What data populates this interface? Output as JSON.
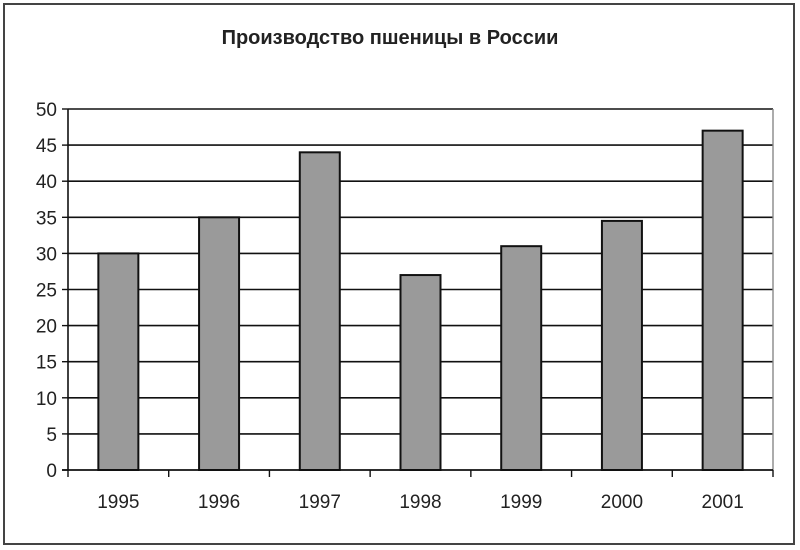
{
  "chart_data": {
    "type": "bar",
    "title": "Производство пшеницы в России",
    "xlabel": "",
    "ylabel": "",
    "categories": [
      "1995",
      "1996",
      "1997",
      "1998",
      "1999",
      "2000",
      "2001"
    ],
    "values": [
      30,
      35,
      44,
      27,
      31,
      34.5,
      47
    ],
    "ylim": [
      0,
      50
    ],
    "yticks": [
      "0",
      "5",
      "10",
      "15",
      "20",
      "25",
      "30",
      "35",
      "40",
      "45",
      "50"
    ],
    "grid": true,
    "legend": "none",
    "bar_color": "#9a9a9a",
    "bar_edge_color": "#111111"
  }
}
